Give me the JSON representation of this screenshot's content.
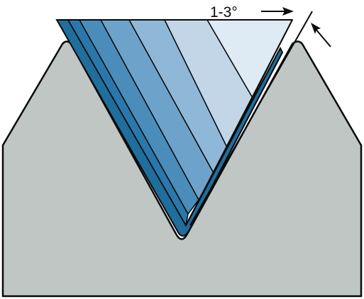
{
  "diagram": {
    "angle_label": "1-3°",
    "colors": {
      "workpiece_fill": "#bfc6c4",
      "outline": "#0a0a0a",
      "coat_dark": "#1f6e9c",
      "coat_mid": "#2e7fb0",
      "band_1": "#1f6e9c",
      "band_2": "#2a78ab",
      "band_3": "#4a8dbb",
      "band_4": "#6da3cb",
      "band_5": "#8fb8d8",
      "band_6": "#c2d6e8",
      "band_7": "#deeaf4",
      "background": "#ffffff"
    }
  }
}
